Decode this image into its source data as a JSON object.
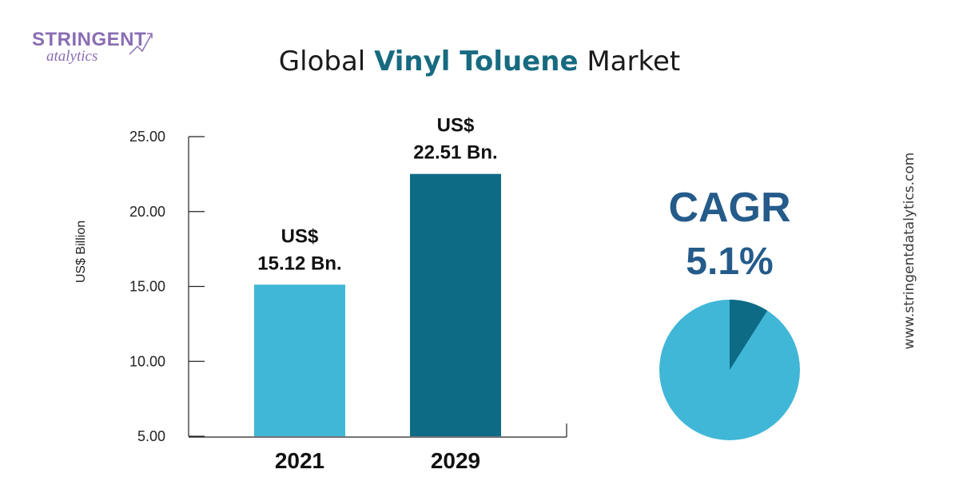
{
  "logo": {
    "line1": "STRINGENT",
    "line2": "atalytics"
  },
  "header": {
    "title_before": "Global ",
    "title_highlight": "Vinyl Toluene",
    "title_after": " Market"
  },
  "side_text": "www.stringentdatalytics.com",
  "colors": {
    "bar_2021": "#40b7d6",
    "bar_2029": "#0e6b86",
    "pie_main": "#40b7d6",
    "pie_slice": "#0e6b86",
    "title_highlight": "#176b80",
    "cagr": "#245b8a"
  },
  "chart_data": {
    "type": "bar",
    "ylabel": "US$ Billion",
    "ylim": [
      5,
      25
    ],
    "yticks": [
      "25.00",
      "20.00",
      "15.00",
      "10.00",
      "5.00"
    ],
    "yticks_values": [
      25,
      20,
      15,
      10,
      5
    ],
    "categories": [
      "2021",
      "2029"
    ],
    "values": [
      15.12,
      22.51
    ],
    "data_labels": [
      {
        "line1": "US$",
        "line2": "15.12 Bn."
      },
      {
        "line1": "US$",
        "line2": "22.51 Bn."
      }
    ]
  },
  "cagr": {
    "label": "CAGR",
    "value": "5.1%",
    "slice_fraction": 0.09
  }
}
